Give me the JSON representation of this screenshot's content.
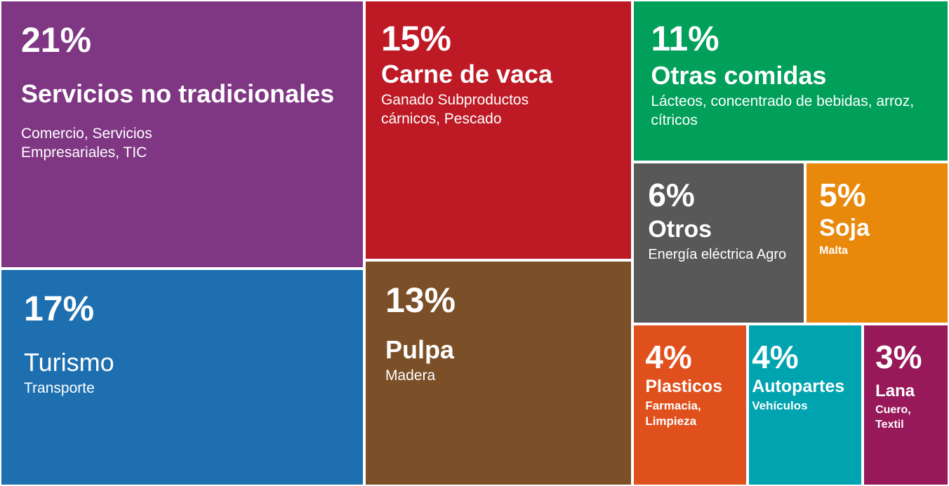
{
  "chart_data": {
    "type": "treemap",
    "categories": [
      "Servicios no tradicionales",
      "Turismo",
      "Carne de vaca",
      "Pulpa",
      "Otras comidas",
      "Otros",
      "Soja",
      "Plasticos",
      "Autopartes",
      "Lana"
    ],
    "descriptions": [
      "Comercio, Servicios Empresariales, TIC",
      "Transporte",
      "Ganado Subproductos cárnicos, Pescado",
      "Madera",
      "Lácteos, concentrado de bebidas, arroz, cítricos",
      "Energía eléctrica Agro",
      "Malta",
      "Farmacia, Limpieza",
      "Vehículos",
      "Cuero, Textil"
    ],
    "values": [
      21,
      17,
      15,
      13,
      11,
      6,
      5,
      4,
      4,
      3
    ],
    "value_labels": [
      "21%",
      "17%",
      "15%",
      "13%",
      "11%",
      "6%",
      "5%",
      "4%",
      "4%",
      "3%"
    ],
    "colors": [
      "#7f3683",
      "#1d6fb0",
      "#be1a25",
      "#7b4f27",
      "#00a05a",
      "#585858",
      "#e8890c",
      "#e0501c",
      "#00a3b0",
      "#97195a"
    ]
  }
}
